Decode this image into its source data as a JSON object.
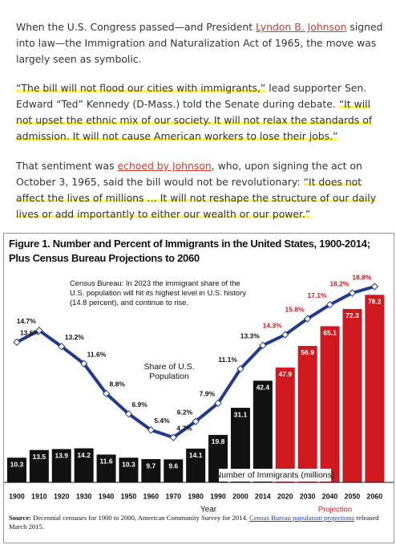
{
  "article": {
    "p1": {
      "a": "When the U.S. Congress passed—and President ",
      "link": "Lyndon B. Johnson",
      "b": " signed into law—the Immigration and Naturalization Act of 1965, the move was largely seen as symbolic."
    },
    "p2": {
      "quote1": "“The bill will not flood our cities with immigrants,”",
      "a": " lead supporter Sen. Edward “Ted” Kennedy (D-Mass.) told the Senate during debate. ",
      "quote2": "“It will not upset the ethnic mix of our society. It will not relax the standards of admission. It will not cause American workers to lose their jobs.”"
    },
    "p3": {
      "a": "That sentiment was ",
      "link": "echoed by Johnson",
      "b": ", who, upon signing the act on October 3, 1965, said the bill would not be revolutionary: ",
      "quote": "“It does not affect the lives of millions … It will not reshape the structure of our daily lives or add importantly to either our wealth or our power.”"
    }
  },
  "chart_data": {
    "type": "bar-line",
    "title": "Figure 1. Number and Percent of Immigrants in the United States, 1900-2014; Plus Census Bureau Projections to 2060",
    "annotation": "Census Bureau: In 2023 the immigrant share of the U.S. population will hit its highest level in U.S. history (14.8 percent), and continue to rise.",
    "x_label": "Year",
    "projection_label": "Projection",
    "categories": [
      "1900",
      "1910",
      "1920",
      "1930",
      "1940",
      "1950",
      "1960",
      "1970",
      "1980",
      "1990",
      "2000",
      "2014",
      "2020",
      "2030",
      "2040",
      "2050",
      "2060"
    ],
    "ylim": [
      0,
      87
    ],
    "y2lim": [
      0.5,
      20
    ],
    "series": [
      {
        "name": "Number of Immigrants (millions)",
        "type": "bar",
        "colors": [
          "#111111",
          "#111111",
          "#111111",
          "#111111",
          "#111111",
          "#111111",
          "#111111",
          "#111111",
          "#111111",
          "#111111",
          "#111111",
          "#111111",
          "#d0191f",
          "#d0191f",
          "#d0191f",
          "#d0191f",
          "#d0191f"
        ],
        "values": [
          10.3,
          13.5,
          13.9,
          14.2,
          11.6,
          10.3,
          9.7,
          9.6,
          14.1,
          19.8,
          31.1,
          42.4,
          47.9,
          56.9,
          65.1,
          72.3,
          78.2
        ]
      },
      {
        "name": "Share of U.S. Population",
        "type": "line",
        "axis": "y2",
        "color": "#1f3a8f",
        "label_colors": [
          "#111111",
          "#111111",
          "#111111",
          "#111111",
          "#111111",
          "#111111",
          "#111111",
          "#111111",
          "#111111",
          "#111111",
          "#111111",
          "#111111",
          "#d0191f",
          "#d0191f",
          "#d0191f",
          "#d0191f",
          "#d0191f"
        ],
        "values": [
          13.6,
          14.7,
          13.2,
          11.6,
          8.8,
          6.9,
          5.4,
          4.7,
          6.2,
          7.9,
          11.1,
          13.3,
          14.3,
          15.8,
          17.1,
          18.2,
          18.8
        ],
        "value_labels": [
          "13.6%",
          "14.7%",
          "13.2%",
          "11.6%",
          "8.8%",
          "6.9%",
          "5.4%",
          "4.7%",
          "6.2%",
          "7.9%",
          "11.1%",
          "13.3%",
          "14.3%",
          "15.8%",
          "17.1%",
          "18.2%",
          "18.8%"
        ]
      }
    ],
    "source": {
      "label": "Source:",
      "text": " Decennial censuses for 1900 to 2000, American Community Survey for 2014. ",
      "link": "Census Bureau population projections",
      "tail": " released March 2015."
    }
  }
}
